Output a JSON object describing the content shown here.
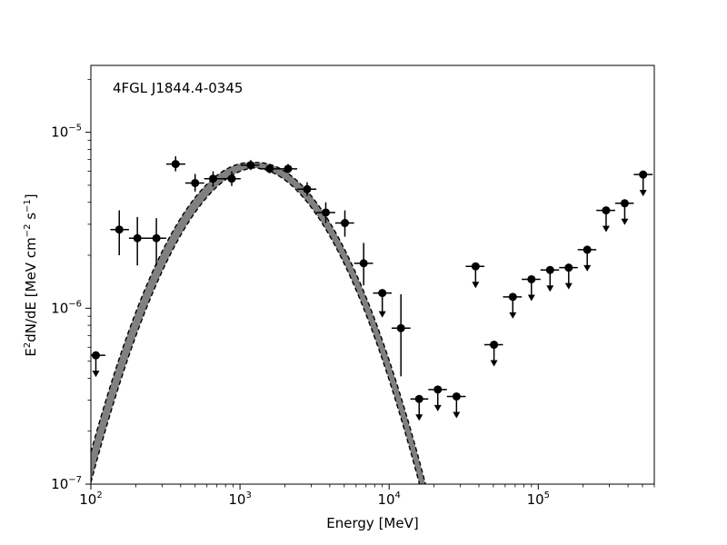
{
  "chart_data": {
    "type": "scatter",
    "source_label": "4FGL J1844.4-0345",
    "xlabel": "Energy [MeV]",
    "ylabel_parts": {
      "pre": "E",
      "sup1": "2",
      "mid": "dN/dE [MeV cm",
      "sup2": "−2",
      "mid2": " s",
      "sup3": "−1",
      "post": "]"
    },
    "x_scale": "log",
    "y_scale": "log",
    "xlim": [
      100,
      600000
    ],
    "ylim": [
      1e-07,
      2.4e-05
    ],
    "x_ticks": [
      {
        "value": 100,
        "base": "10",
        "exp": "2"
      },
      {
        "value": 1000,
        "base": "10",
        "exp": "3"
      },
      {
        "value": 10000,
        "base": "10",
        "exp": "4"
      },
      {
        "value": 100000,
        "base": "10",
        "exp": "5"
      }
    ],
    "y_ticks": [
      {
        "value": 1e-07,
        "base": "10",
        "exp": "−7"
      },
      {
        "value": 1e-06,
        "base": "10",
        "exp": "−6"
      },
      {
        "value": 1e-05,
        "base": "10",
        "exp": "−5"
      }
    ],
    "model": {
      "type": "log-parabola",
      "norm": 6.5e-06,
      "e_peak": 1250,
      "beta": 0.62,
      "band_frac_low": 0.22,
      "band_frac_peak": 0.035,
      "band_frac_high": 0.16,
      "band_color": "#808080"
    },
    "points": [
      {
        "e": 370,
        "lo": 320,
        "hi": 430,
        "y": 6.6e-06,
        "ylo": 6e-06,
        "yhi": 7.3e-06
      },
      {
        "e": 155,
        "lo": 135,
        "hi": 180,
        "y": 2.8e-06,
        "ylo": 2e-06,
        "yhi": 3.6e-06
      },
      {
        "e": 205,
        "lo": 180,
        "hi": 235,
        "y": 2.5e-06,
        "ylo": 1.75e-06,
        "yhi": 3.3e-06
      },
      {
        "e": 275,
        "lo": 235,
        "hi": 320,
        "y": 2.5e-06,
        "ylo": 1.75e-06,
        "yhi": 3.25e-06
      },
      {
        "e": 500,
        "lo": 430,
        "hi": 575,
        "y": 5.15e-06,
        "ylo": 4.6e-06,
        "yhi": 5.8e-06
      },
      {
        "e": 660,
        "lo": 575,
        "hi": 760,
        "y": 5.45e-06,
        "ylo": 4.9e-06,
        "yhi": 6e-06
      },
      {
        "e": 880,
        "lo": 760,
        "hi": 1010,
        "y": 5.45e-06,
        "ylo": 4.95e-06,
        "yhi": 6e-06
      },
      {
        "e": 1180,
        "lo": 1010,
        "hi": 1350,
        "y": 6.5e-06,
        "ylo": 6.1e-06,
        "yhi": 6.95e-06
      },
      {
        "e": 1580,
        "lo": 1350,
        "hi": 1820,
        "y": 6.2e-06,
        "ylo": 5.85e-06,
        "yhi": 6.6e-06
      },
      {
        "e": 2100,
        "lo": 1820,
        "hi": 2420,
        "y": 6.2e-06,
        "ylo": 5.85e-06,
        "yhi": 6.6e-06
      },
      {
        "e": 2820,
        "lo": 2420,
        "hi": 3250,
        "y": 4.75e-06,
        "ylo": 4.35e-06,
        "yhi": 5.2e-06
      },
      {
        "e": 3760,
        "lo": 3250,
        "hi": 4350,
        "y": 3.5e-06,
        "ylo": 3.05e-06,
        "yhi": 4e-06
      },
      {
        "e": 5050,
        "lo": 4350,
        "hi": 5820,
        "y": 3.05e-06,
        "ylo": 2.55e-06,
        "yhi": 3.6e-06
      },
      {
        "e": 6750,
        "lo": 5820,
        "hi": 7800,
        "y": 1.8e-06,
        "ylo": 1.35e-06,
        "yhi": 2.35e-06
      },
      {
        "e": 9000,
        "lo": 7800,
        "hi": 10400,
        "y": 1.22e-06,
        "ylo": 9e-07,
        "yhi": 1.22e-06,
        "ul": true
      },
      {
        "e": 12000,
        "lo": 10400,
        "hi": 13900,
        "y": 7.7e-07,
        "ylo": 4.1e-07,
        "yhi": 1.2e-06
      }
    ],
    "upper_limits": [
      {
        "e": 108,
        "lo": 100,
        "hi": 125,
        "y": 5.4e-07
      },
      {
        "e": 15900,
        "lo": 13900,
        "hi": 18300,
        "y": 3.05e-07
      },
      {
        "e": 21200,
        "lo": 18300,
        "hi": 24400,
        "y": 3.45e-07
      },
      {
        "e": 28300,
        "lo": 24400,
        "hi": 32600,
        "y": 3.15e-07
      },
      {
        "e": 38000,
        "lo": 32600,
        "hi": 43500,
        "y": 1.73e-06
      },
      {
        "e": 50500,
        "lo": 43500,
        "hi": 58000,
        "y": 6.2e-07
      },
      {
        "e": 67500,
        "lo": 58000,
        "hi": 77500,
        "y": 1.16e-06
      },
      {
        "e": 90000,
        "lo": 77500,
        "hi": 103500,
        "y": 1.46e-06
      },
      {
        "e": 120000,
        "lo": 103500,
        "hi": 138000,
        "y": 1.65e-06
      },
      {
        "e": 160000,
        "lo": 138000,
        "hi": 184000,
        "y": 1.7e-06
      },
      {
        "e": 213000,
        "lo": 184000,
        "hi": 245000,
        "y": 2.15e-06
      },
      {
        "e": 285000,
        "lo": 245000,
        "hi": 328000,
        "y": 3.6e-06
      },
      {
        "e": 380000,
        "lo": 328000,
        "hi": 437000,
        "y": 3.95e-06
      },
      {
        "e": 505000,
        "lo": 437000,
        "hi": 585000,
        "y": 5.75e-06
      }
    ]
  }
}
